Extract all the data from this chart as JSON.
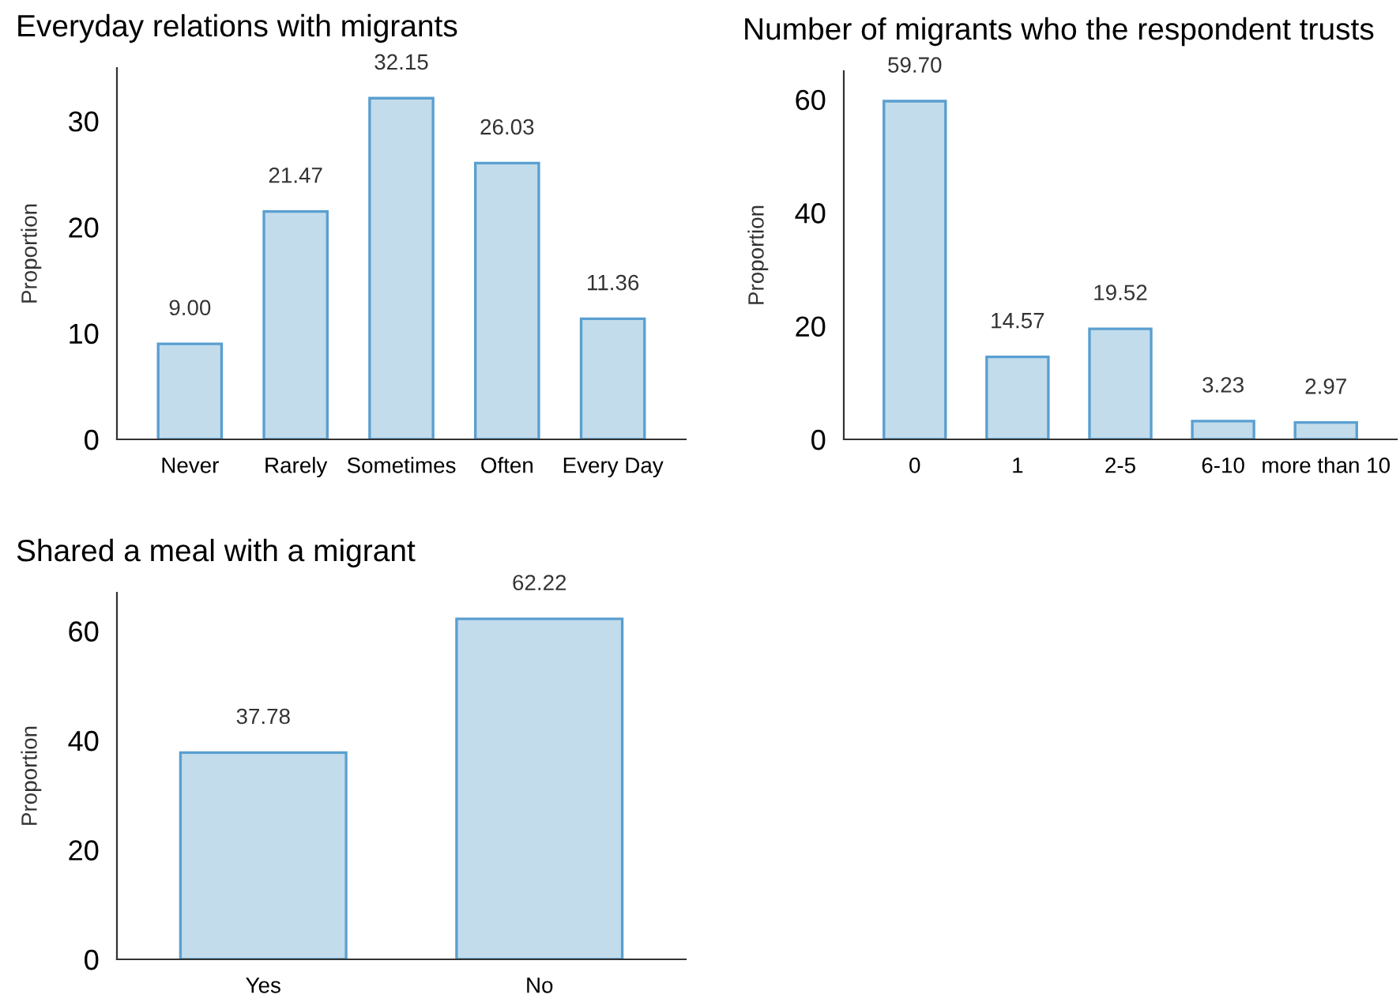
{
  "chart_data": [
    {
      "type": "bar",
      "title": "Everyday relations with migrants",
      "ylabel": "Proportion",
      "categories": [
        "Never",
        "Rarely",
        "Sometimes",
        "Often",
        "Every Day"
      ],
      "values": [
        9.0,
        21.47,
        32.15,
        26.03,
        11.36
      ],
      "value_labels": [
        "9.00",
        "21.47",
        "32.15",
        "26.03",
        "11.36"
      ],
      "color": "#c2dcec",
      "ylim": [
        0,
        35
      ],
      "yticks": [
        0,
        10,
        20,
        30
      ],
      "grid": false,
      "legend": false
    },
    {
      "type": "bar",
      "title": "Number of migrants who the respondent trusts",
      "ylabel": "Proportion",
      "categories": [
        "0",
        "1",
        "2-5",
        "6-10",
        "more than 10"
      ],
      "values": [
        59.7,
        14.57,
        19.52,
        3.23,
        2.97
      ],
      "value_labels": [
        "59.70",
        "14.57",
        "19.52",
        "3.23",
        "2.97"
      ],
      "color": "#c2dcec",
      "ylim": [
        0,
        65
      ],
      "yticks": [
        0,
        20,
        40,
        60
      ],
      "grid": false,
      "legend": false
    },
    {
      "type": "bar",
      "title": "Shared a meal with a migrant",
      "ylabel": "Proportion",
      "categories": [
        "Yes",
        "No"
      ],
      "values": [
        37.78,
        62.22
      ],
      "value_labels": [
        "37.78",
        "62.22"
      ],
      "color": "#c2dcec",
      "ylim": [
        0,
        67
      ],
      "yticks": [
        0,
        20,
        40,
        60
      ],
      "grid": false,
      "legend": false
    }
  ]
}
